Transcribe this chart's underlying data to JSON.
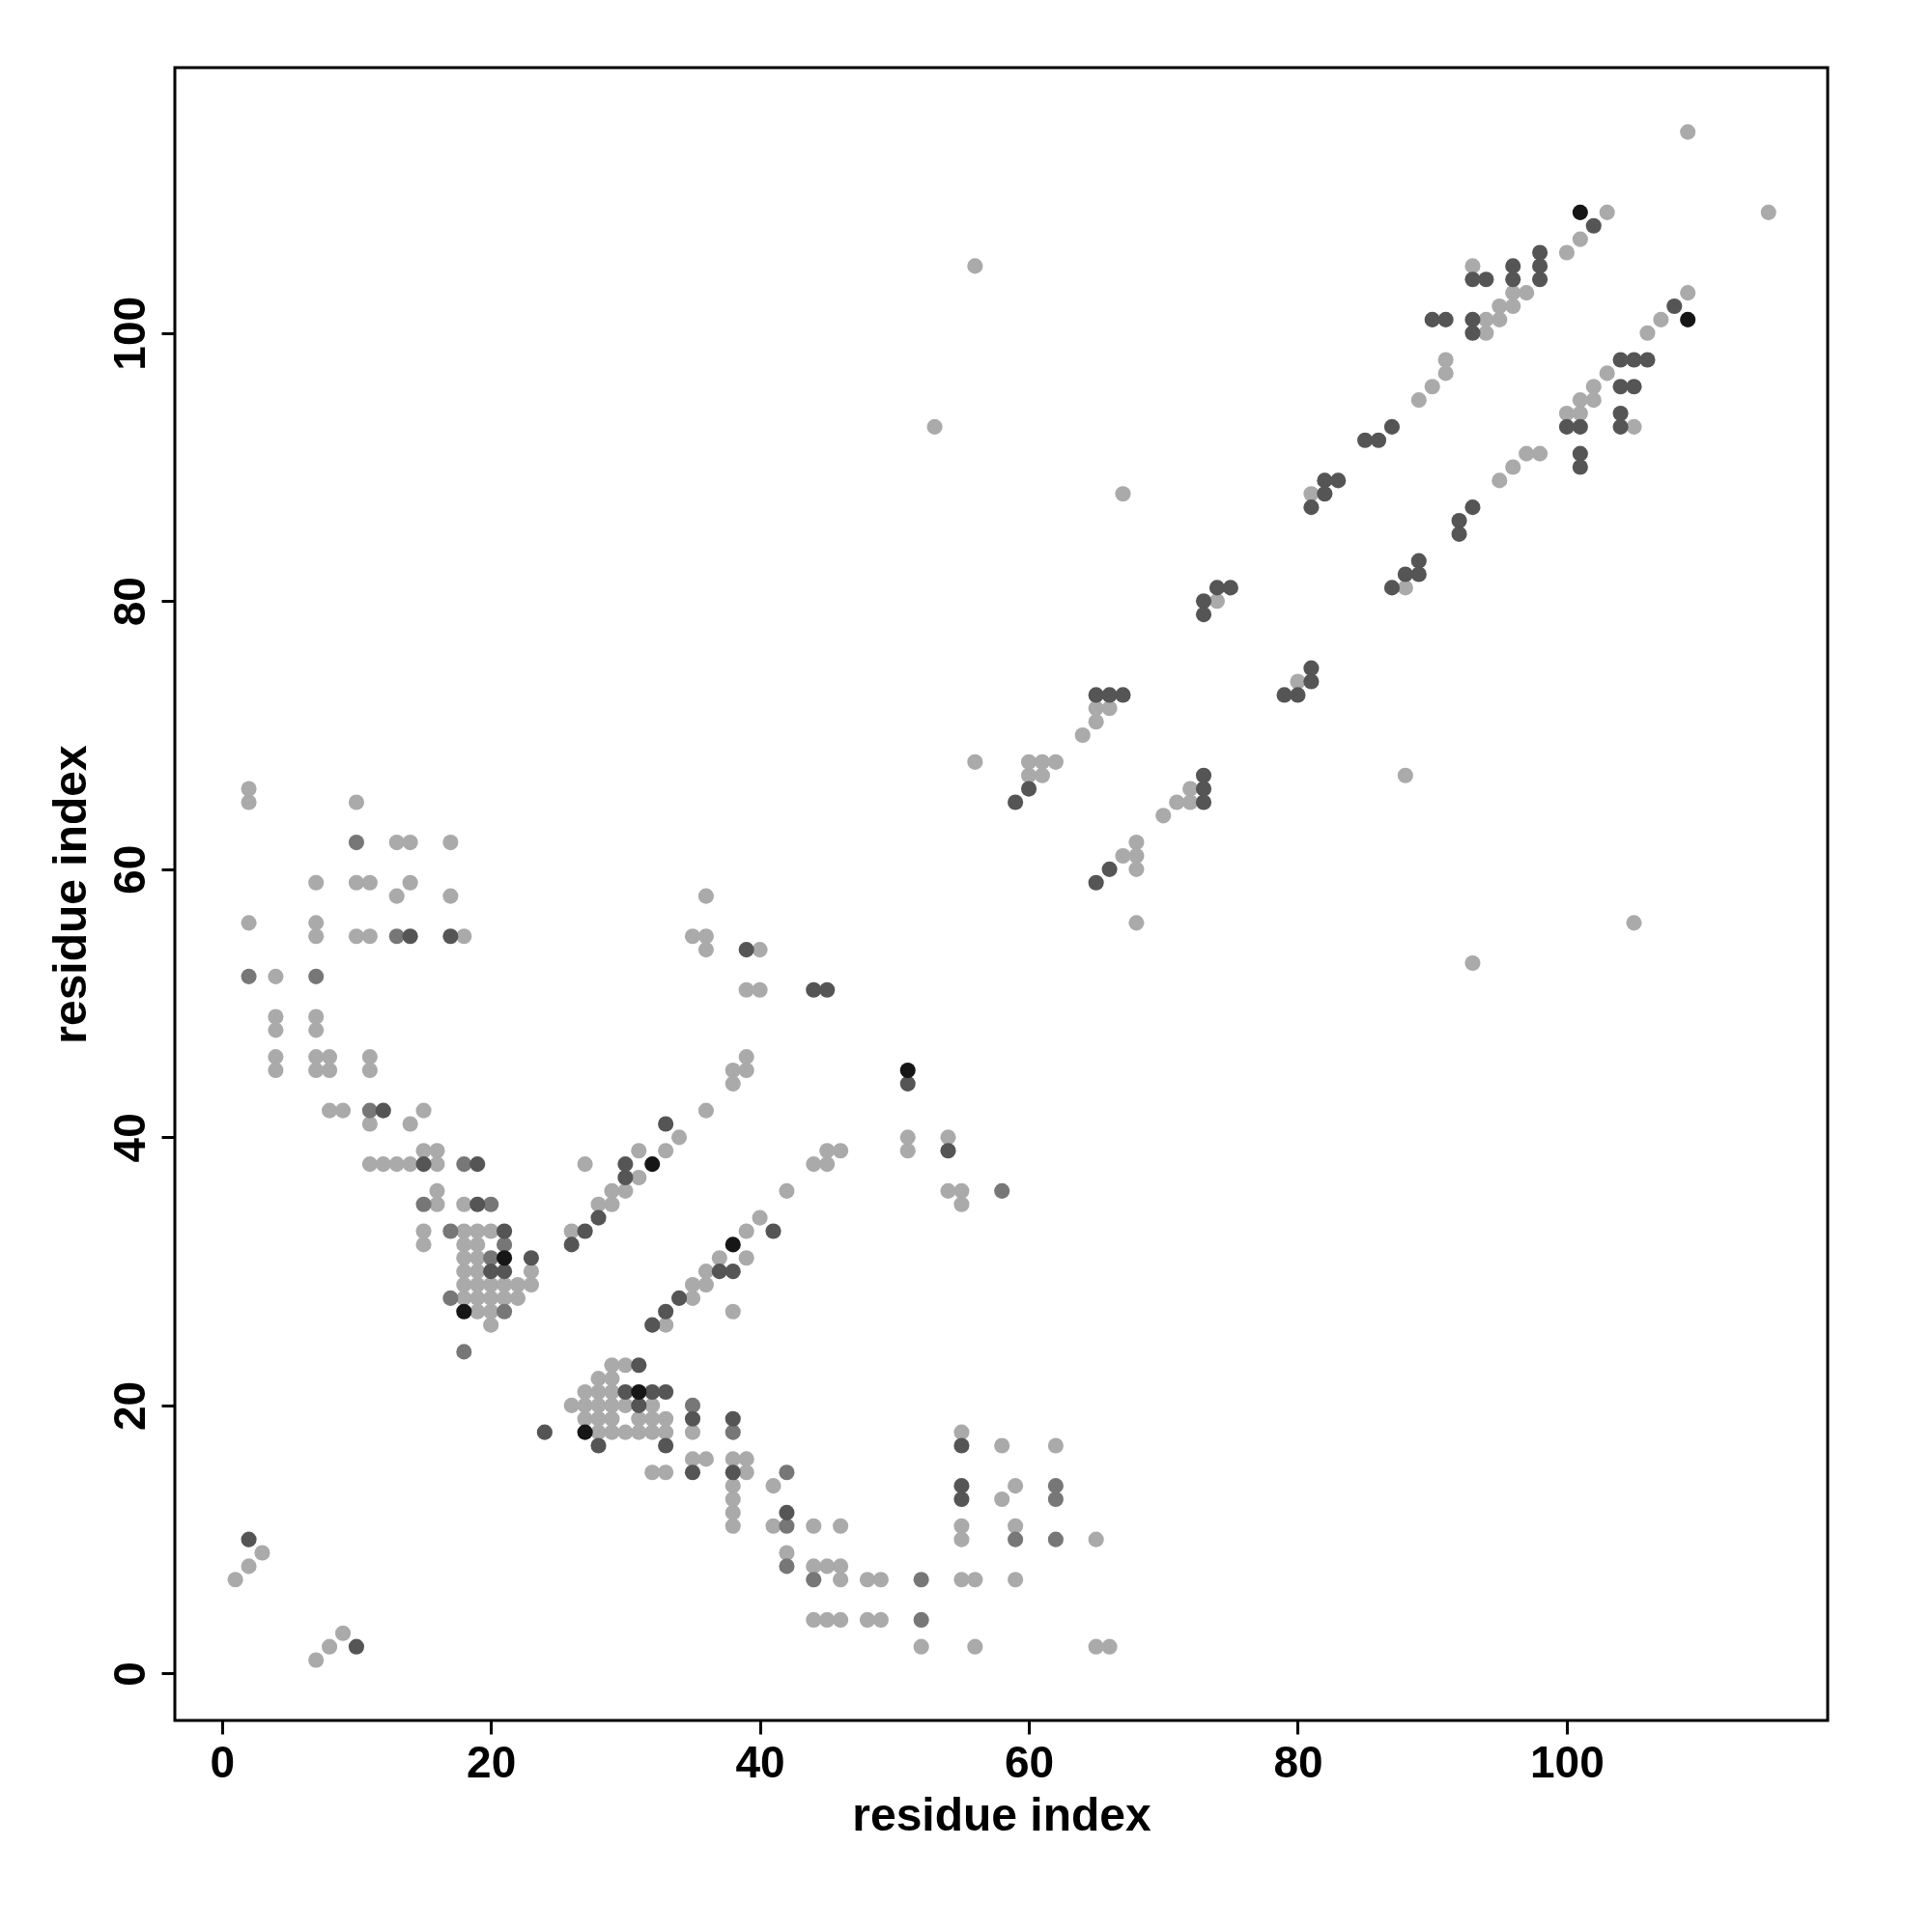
{
  "chart_data": {
    "type": "scatter",
    "xlabel": "residue index",
    "ylabel": "residue index",
    "xlim": [
      -3.5,
      119.4
    ],
    "ylim": [
      -3.5,
      119.8
    ],
    "xticks": [
      0,
      20,
      40,
      60,
      80,
      100
    ],
    "yticks": [
      0,
      20,
      40,
      60,
      80,
      100
    ],
    "grid": false,
    "legend": false,
    "marker": "circle",
    "series": [
      {
        "color": "#aaaaaa",
        "x": [
          1,
          2,
          3,
          7,
          8,
          9,
          2,
          2,
          2,
          4,
          4,
          4,
          4,
          4,
          7,
          7,
          7,
          7,
          7,
          7,
          7,
          8,
          8,
          8,
          9,
          10,
          10,
          10,
          11,
          11,
          11,
          11,
          11,
          11,
          12,
          13,
          13,
          13,
          14,
          14,
          14,
          14,
          15,
          15,
          15,
          15,
          16,
          16,
          16,
          16,
          17,
          17,
          18,
          18,
          18,
          18,
          18,
          18,
          18,
          18,
          19,
          19,
          19,
          19,
          19,
          19,
          19,
          20,
          20,
          20,
          20,
          20,
          21,
          21,
          22,
          22,
          23,
          23,
          26,
          27,
          28,
          29,
          29,
          30,
          31,
          31,
          33,
          34,
          36,
          36,
          35,
          36,
          36,
          38,
          38,
          39,
          39,
          40,
          39,
          40,
          33,
          35,
          35,
          36,
          36,
          37,
          38,
          39,
          39,
          40,
          42,
          44,
          45,
          45,
          46,
          26,
          27,
          27,
          27,
          28,
          28,
          28,
          28,
          28,
          29,
          29,
          29,
          29,
          29,
          29,
          30,
          30,
          30,
          31,
          31,
          32,
          32,
          32,
          32,
          33,
          33,
          33,
          35,
          35,
          36,
          38,
          38,
          38,
          38,
          38,
          39,
          39,
          41,
          41,
          42,
          44,
          44,
          44,
          45,
          45,
          46,
          46,
          46,
          46,
          48,
          48,
          49,
          49,
          52,
          51,
          51,
          54,
          54,
          55,
          55,
          55,
          55,
          55,
          55,
          56,
          56,
          56,
          56,
          53,
          58,
          58,
          59,
          59,
          59,
          62,
          65,
          65,
          66,
          60,
          60,
          61,
          61,
          62,
          64,
          65,
          65,
          66,
          67,
          74,
          80,
          81,
          88,
          88,
          89,
          90,
          91,
          91,
          93,
          94,
          94,
          95,
          95,
          96,
          96,
          97,
          93,
          95,
          96,
          97,
          98,
          100,
          101,
          103,
          100,
          101,
          101,
          102,
          102,
          103,
          105,
          106,
          107,
          109,
          109,
          115,
          105,
          67,
          68,
          68,
          68,
          68,
          70,
          71,
          72,
          72
        ],
        "values": [
          7,
          8,
          9,
          1,
          2,
          3,
          66,
          65,
          56,
          52,
          49,
          48,
          46,
          45,
          59,
          56,
          55,
          49,
          48,
          46,
          45,
          46,
          45,
          42,
          42,
          65,
          59,
          55,
          59,
          55,
          46,
          45,
          41,
          38,
          38,
          62,
          58,
          38,
          62,
          59,
          41,
          38,
          42,
          39,
          33,
          32,
          39,
          38,
          36,
          35,
          62,
          58,
          55,
          35,
          33,
          32,
          31,
          30,
          29,
          28,
          33,
          32,
          31,
          30,
          29,
          28,
          27,
          33,
          29,
          28,
          27,
          26,
          29,
          28,
          29,
          28,
          30,
          29,
          33,
          38,
          35,
          36,
          35,
          36,
          39,
          37,
          39,
          40,
          42,
          58,
          55,
          55,
          54,
          44,
          45,
          46,
          45,
          54,
          51,
          51,
          26,
          28,
          29,
          29,
          30,
          31,
          27,
          33,
          31,
          34,
          36,
          38,
          38,
          39,
          39,
          20,
          21,
          20,
          19,
          22,
          21,
          20,
          19,
          18,
          23,
          22,
          21,
          20,
          19,
          18,
          23,
          20,
          18,
          19,
          18,
          20,
          19,
          18,
          15,
          19,
          18,
          15,
          18,
          16,
          16,
          16,
          14,
          13,
          12,
          11,
          16,
          15,
          14,
          11,
          9,
          11,
          8,
          4,
          8,
          4,
          11,
          8,
          7,
          4,
          7,
          4,
          7,
          4,
          2,
          40,
          39,
          40,
          36,
          36,
          35,
          18,
          11,
          10,
          7,
          7,
          2,
          68,
          105,
          93,
          17,
          13,
          14,
          11,
          7,
          17,
          10,
          2,
          2,
          67,
          68,
          68,
          67,
          68,
          70,
          71,
          72,
          72,
          88,
          80,
          74,
          88,
          81,
          67,
          95,
          96,
          98,
          97,
          105,
          101,
          100,
          101,
          102,
          102,
          103,
          103,
          53,
          89,
          90,
          91,
          91,
          106,
          107,
          109,
          94,
          94,
          95,
          95,
          96,
          97,
          93,
          100,
          101,
          103,
          115,
          109,
          56,
          61,
          61,
          62,
          60,
          56,
          64,
          65,
          65,
          66
        ]
      },
      {
        "color": "#777777",
        "x": [
          2,
          7,
          10,
          11,
          13,
          15,
          17,
          17,
          18,
          18,
          20,
          20,
          21,
          21,
          35,
          38,
          42,
          42,
          42,
          44,
          52,
          52,
          58,
          59,
          62,
          62,
          62
        ],
        "values": [
          52,
          52,
          62,
          42,
          55,
          35,
          33,
          28,
          38,
          24,
          35,
          31,
          32,
          27,
          20,
          18,
          15,
          11,
          8,
          7,
          7,
          4,
          36,
          10,
          14,
          13,
          10
        ]
      },
      {
        "color": "#555555",
        "x": [
          12,
          14,
          15,
          17,
          19,
          19,
          20,
          21,
          21,
          23,
          24,
          2,
          10,
          26,
          27,
          28,
          30,
          30,
          33,
          39,
          44,
          45,
          32,
          33,
          34,
          37,
          38,
          41,
          28,
          30,
          31,
          31,
          32,
          33,
          33,
          35,
          35,
          38,
          38,
          42,
          51,
          54,
          55,
          55,
          55,
          59,
          60,
          65,
          66,
          67,
          73,
          73,
          74,
          75,
          79,
          80,
          81,
          81,
          81,
          82,
          82,
          83,
          85,
          86,
          87,
          87,
          88,
          89,
          89,
          90,
          91,
          92,
          92,
          93,
          93,
          93,
          93,
          94,
          96,
          96,
          98,
          98,
          98,
          102,
          100,
          101,
          101,
          101,
          104,
          104,
          104,
          104,
          105,
          105,
          106,
          108,
          65,
          66,
          73,
          73,
          73
        ],
        "values": [
          42,
          55,
          38,
          55,
          38,
          35,
          30,
          33,
          30,
          31,
          18,
          10,
          2,
          32,
          33,
          34,
          37,
          38,
          41,
          54,
          51,
          51,
          26,
          27,
          28,
          30,
          30,
          33,
          17,
          21,
          23,
          20,
          21,
          21,
          17,
          19,
          15,
          19,
          15,
          12,
          44,
          39,
          17,
          14,
          13,
          65,
          66,
          73,
          73,
          73,
          80,
          79,
          81,
          81,
          73,
          73,
          75,
          74,
          87,
          89,
          88,
          89,
          92,
          92,
          93,
          81,
          82,
          83,
          82,
          101,
          101,
          86,
          85,
          87,
          101,
          100,
          104,
          104,
          104,
          105,
          104,
          105,
          106,
          108,
          93,
          93,
          91,
          90,
          98,
          96,
          94,
          93,
          98,
          96,
          98,
          102,
          59,
          60,
          67,
          66,
          65
        ]
      },
      {
        "color": "#161616",
        "x": [
          18,
          21,
          32,
          38,
          27,
          31,
          51,
          101,
          109
        ],
        "values": [
          27,
          31,
          38,
          32,
          18,
          21,
          45,
          109,
          101
        ]
      }
    ]
  }
}
